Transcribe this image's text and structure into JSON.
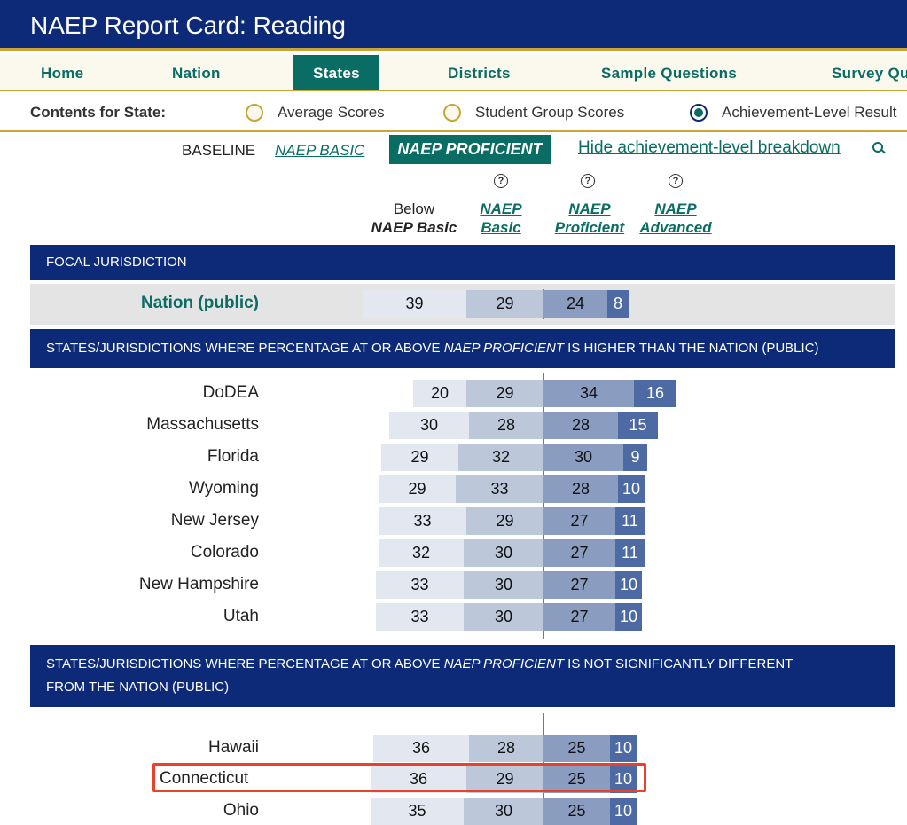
{
  "app": {
    "title": "NAEP Report Card: Reading"
  },
  "nav": {
    "home": "Home",
    "nation": "Nation",
    "states": "States",
    "districts": "Districts",
    "sample_questions": "Sample Questions",
    "survey": "Survey Qu"
  },
  "contents": {
    "label": "Contents for State:",
    "options": [
      "Average Scores",
      "Student Group Scores",
      "Achievement-Level Result"
    ],
    "selected": "Achievement-Level Result"
  },
  "baseline": {
    "label": "BASELINE",
    "basic": "NAEP BASIC",
    "proficient": "NAEP PROFICIENT",
    "hide_link": "Hide achievement-level breakdown"
  },
  "columns": {
    "below_l1": "Below",
    "below_l2": "NAEP Basic",
    "basic_l1": "NAEP",
    "basic_l2": "Basic",
    "prof_l1": "NAEP",
    "prof_l2": "Proficient",
    "adv_l1": "NAEP",
    "adv_l2": "Advanced",
    "help_glyph": "?"
  },
  "banners": {
    "focal": "FOCAL JURISDICTION",
    "higher_pre": "STATES/JURISDICTIONS WHERE PERCENTAGE AT OR ABOVE ",
    "higher_it": "NAEP PROFICIENT",
    "higher_post": " IS HIGHER THAN THE NATION (PUBLIC)",
    "notsig_pre": "STATES/JURISDICTIONS WHERE PERCENTAGE AT OR ABOVE ",
    "notsig_it": "NAEP PROFICIENT",
    "notsig_post": " IS NOT SIGNIFICANTLY DIFFERENT",
    "notsig_line2": "FROM THE NATION (PUBLIC)"
  },
  "colors": {
    "navy": "#0d2a78",
    "teal": "#0a6d64",
    "gold": "#c9a437",
    "below": "#e3e7f0",
    "basic": "#bcc7da",
    "proficient": "#8a9cc0",
    "advanced": "#4e6aa4",
    "highlight": "#e8432a"
  },
  "chart_data": {
    "type": "bar",
    "orientation": "horizontal stacked, diverging at NAEP Proficient baseline",
    "series_names": [
      "Below NAEP Basic",
      "NAEP Basic",
      "NAEP Proficient",
      "NAEP Advanced"
    ],
    "groups": [
      {
        "banner": "FOCAL JURISDICTION",
        "rows": [
          {
            "name": "Nation (public)",
            "values": [
              39,
              29,
              24,
              8
            ],
            "focal": true
          }
        ]
      },
      {
        "banner": "higher",
        "rows": [
          {
            "name": "DoDEA",
            "values": [
              20,
              29,
              34,
              16
            ]
          },
          {
            "name": "Massachusetts",
            "values": [
              30,
              28,
              28,
              15
            ]
          },
          {
            "name": "Florida",
            "values": [
              29,
              32,
              30,
              9
            ]
          },
          {
            "name": "Wyoming",
            "values": [
              29,
              33,
              28,
              10
            ]
          },
          {
            "name": "New Jersey",
            "values": [
              33,
              29,
              27,
              11
            ]
          },
          {
            "name": "Colorado",
            "values": [
              32,
              30,
              27,
              11
            ]
          },
          {
            "name": "New Hampshire",
            "values": [
              33,
              30,
              27,
              10
            ]
          },
          {
            "name": "Utah",
            "values": [
              33,
              30,
              27,
              10
            ]
          }
        ]
      },
      {
        "banner": "notsig",
        "rows": [
          {
            "name": "Hawaii",
            "values": [
              36,
              28,
              25,
              10
            ]
          },
          {
            "name": "Connecticut",
            "values": [
              36,
              29,
              25,
              10
            ],
            "highlighted": true
          },
          {
            "name": "Ohio",
            "values": [
              35,
              30,
              25,
              10
            ]
          }
        ]
      }
    ]
  }
}
